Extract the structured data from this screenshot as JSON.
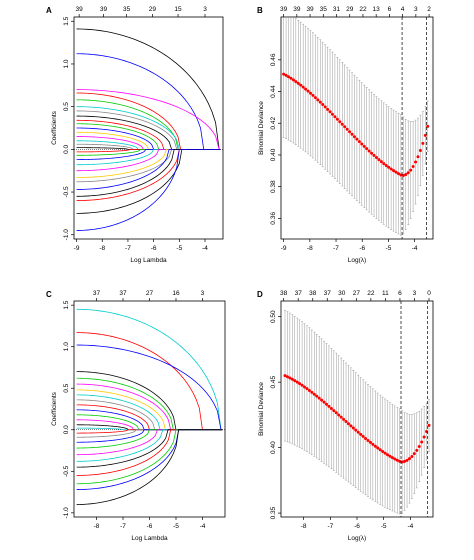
{
  "panels": [
    {
      "letter": "A",
      "type": "coef_path",
      "top_ticks": [
        "39",
        "39",
        "35",
        "29",
        "15",
        "3"
      ],
      "top_tick_x": [
        -8.9,
        -7.95,
        -7.05,
        -6.05,
        -5.05,
        -4.0
      ],
      "x_ticks": [
        -9,
        -8,
        -7,
        -6,
        -5,
        -4
      ],
      "y_ticks": [
        -1.0,
        -0.5,
        0.0,
        0.5,
        1.0,
        1.5
      ],
      "xlim": [
        -9.1,
        -3.3
      ],
      "ylim": [
        -1.05,
        1.55
      ],
      "xlabel": "Log Lambda",
      "ylabel": "Coefficients"
    },
    {
      "letter": "B",
      "type": "cv_curve",
      "top_ticks": [
        "39",
        "39",
        "39",
        "35",
        "31",
        "29",
        "22",
        "13",
        "6",
        "4",
        "3",
        "2"
      ],
      "x_ticks": [
        -9,
        -8,
        -7,
        -6,
        -5,
        -4
      ],
      "y_ticks": [
        0.36,
        0.38,
        0.4,
        0.42,
        0.44,
        0.46
      ],
      "xlim": [
        -9.1,
        -3.3
      ],
      "ylim": [
        0.347,
        0.487
      ],
      "xlabel": "Log(λ)",
      "ylabel": "Binomial Deviance"
    },
    {
      "letter": "C",
      "type": "coef_path",
      "top_ticks": [
        "37",
        "37",
        "27",
        "16",
        "3"
      ],
      "top_tick_x": [
        -8.0,
        -7.0,
        -6.0,
        -5.0,
        -4.0
      ],
      "x_ticks": [
        -8,
        -7,
        -6,
        -5,
        -4
      ],
      "y_ticks": [
        -1.0,
        -0.5,
        0.0,
        0.5,
        1.0,
        1.5
      ],
      "xlim": [
        -8.85,
        -3.15
      ],
      "ylim": [
        -1.05,
        1.55
      ],
      "xlabel": "Log Lambda",
      "ylabel": "Coefficients"
    },
    {
      "letter": "D",
      "type": "cv_curve",
      "top_ticks": [
        "38",
        "37",
        "38",
        "37",
        "30",
        "27",
        "22",
        "11",
        "6",
        "3",
        "0"
      ],
      "x_ticks": [
        -8,
        -7,
        -6,
        -5,
        -4
      ],
      "y_ticks": [
        0.35,
        0.4,
        0.45,
        0.5
      ],
      "xlim": [
        -8.85,
        -3.15
      ],
      "ylim": [
        0.347,
        0.512
      ],
      "xlabel": "Log(λ)",
      "ylabel": "Binomial Deviance"
    }
  ],
  "chart_data": [
    {
      "type": "line",
      "panel": "A",
      "xlabel": "Log Lambda",
      "ylabel": "Coefficients",
      "xlim": [
        -9.1,
        -3.3
      ],
      "ylim": [
        -1.05,
        1.55
      ],
      "end_x": -3.4,
      "note_paths": "coefficient paths shrinking to zero as lambda increases",
      "paths": [
        {
          "start": 1.41,
          "zero_at": -3.45,
          "color": "#000000"
        },
        {
          "start": 1.12,
          "zero_at": -4.05,
          "color": "#0000ff"
        },
        {
          "start": 0.7,
          "zero_at": -3.45,
          "color": "#ff00ff"
        },
        {
          "start": 0.66,
          "zero_at": -4.95,
          "color": "#ff0000"
        },
        {
          "start": 0.58,
          "zero_at": -5.05,
          "color": "#00cc00"
        },
        {
          "start": 0.5,
          "zero_at": -5.0,
          "color": "#00cccc"
        },
        {
          "start": 0.45,
          "zero_at": -5.1,
          "color": "#888888"
        },
        {
          "start": 0.39,
          "zero_at": -5.3,
          "color": "#000000"
        },
        {
          "start": 0.34,
          "zero_at": -5.6,
          "color": "#ff0000"
        },
        {
          "start": 0.3,
          "zero_at": -5.8,
          "color": "#00cc00"
        },
        {
          "start": 0.25,
          "zero_at": -6.0,
          "color": "#0000ff"
        },
        {
          "start": 0.2,
          "zero_at": -6.2,
          "color": "#ffcc00"
        },
        {
          "start": 0.15,
          "zero_at": -6.4,
          "color": "#ff00ff"
        },
        {
          "start": 0.1,
          "zero_at": -6.6,
          "color": "#00cccc"
        },
        {
          "start": 0.06,
          "zero_at": -6.8,
          "color": "#888888"
        },
        {
          "start": 0.02,
          "zero_at": -7.0,
          "color": "#000000"
        },
        {
          "start": -0.03,
          "zero_at": -6.9,
          "color": "#ff0000"
        },
        {
          "start": -0.07,
          "zero_at": -6.5,
          "color": "#00cc00"
        },
        {
          "start": -0.12,
          "zero_at": -6.3,
          "color": "#0000ff"
        },
        {
          "start": -0.18,
          "zero_at": -6.0,
          "color": "#00cccc"
        },
        {
          "start": -0.25,
          "zero_at": -5.8,
          "color": "#ff00ff"
        },
        {
          "start": -0.33,
          "zero_at": -5.5,
          "color": "#ffcc00"
        },
        {
          "start": -0.38,
          "zero_at": -5.3,
          "color": "#888888"
        },
        {
          "start": -0.47,
          "zero_at": -5.4,
          "color": "#0000ff"
        },
        {
          "start": -0.55,
          "zero_at": -5.2,
          "color": "#000000"
        },
        {
          "start": -0.6,
          "zero_at": -5.0,
          "color": "#ff0000"
        },
        {
          "start": -0.75,
          "zero_at": -4.9,
          "color": "#000000"
        },
        {
          "start": -0.95,
          "zero_at": -5.0,
          "color": "#0000ff"
        }
      ]
    },
    {
      "type": "scatter",
      "panel": "B",
      "xlabel": "Log(λ)",
      "ylabel": "Binomial Deviance",
      "xlim": [
        -9.1,
        -3.3
      ],
      "ylim": [
        0.347,
        0.487
      ],
      "x_start": -9.0,
      "x_end": -3.5,
      "n_points": 60,
      "mean_curve": {
        "start": 0.451,
        "min": 0.387,
        "min_at": -4.48,
        "end": 0.418
      },
      "error_halfwidth": {
        "start": 0.04,
        "at_min": 0.038,
        "end": 0.016
      },
      "vline_x": [
        -4.48,
        -3.55
      ],
      "point_color": "#ff0000",
      "errorbar_color": "#999999"
    },
    {
      "type": "line",
      "panel": "C",
      "xlabel": "Log Lambda",
      "ylabel": "Coefficients",
      "xlim": [
        -8.85,
        -3.15
      ],
      "ylim": [
        -1.05,
        1.55
      ],
      "end_x": -3.25,
      "paths": [
        {
          "start": 1.45,
          "zero_at": -3.3,
          "color": "#00cccc"
        },
        {
          "start": 1.17,
          "zero_at": -4.0,
          "color": "#ff0000"
        },
        {
          "start": 1.02,
          "zero_at": -3.3,
          "color": "#0000ff"
        },
        {
          "start": 0.7,
          "zero_at": -5.0,
          "color": "#000000"
        },
        {
          "start": 0.62,
          "zero_at": -5.1,
          "color": "#00cc00"
        },
        {
          "start": 0.55,
          "zero_at": -5.2,
          "color": "#ff00ff"
        },
        {
          "start": 0.48,
          "zero_at": -5.4,
          "color": "#ffcc00"
        },
        {
          "start": 0.42,
          "zero_at": -5.6,
          "color": "#00cccc"
        },
        {
          "start": 0.36,
          "zero_at": -5.8,
          "color": "#888888"
        },
        {
          "start": 0.3,
          "zero_at": -6.0,
          "color": "#ff0000"
        },
        {
          "start": 0.24,
          "zero_at": -6.2,
          "color": "#0000ff"
        },
        {
          "start": 0.18,
          "zero_at": -6.4,
          "color": "#00cc00"
        },
        {
          "start": 0.12,
          "zero_at": -6.6,
          "color": "#ff00ff"
        },
        {
          "start": 0.06,
          "zero_at": -6.8,
          "color": "#000000"
        },
        {
          "start": 0.02,
          "zero_at": -7.0,
          "color": "#00cccc"
        },
        {
          "start": -0.04,
          "zero_at": -6.8,
          "color": "#ff0000"
        },
        {
          "start": -0.09,
          "zero_at": -6.5,
          "color": "#888888"
        },
        {
          "start": -0.15,
          "zero_at": -6.2,
          "color": "#0000ff"
        },
        {
          "start": -0.22,
          "zero_at": -6.0,
          "color": "#00cc00"
        },
        {
          "start": -0.3,
          "zero_at": -5.7,
          "color": "#ff00ff"
        },
        {
          "start": -0.38,
          "zero_at": -5.5,
          "color": "#00cccc"
        },
        {
          "start": -0.45,
          "zero_at": -5.3,
          "color": "#000000"
        },
        {
          "start": -0.55,
          "zero_at": -5.2,
          "color": "#ff0000"
        },
        {
          "start": -0.65,
          "zero_at": -5.0,
          "color": "#00cc00"
        },
        {
          "start": -0.72,
          "zero_at": -4.9,
          "color": "#0000ff"
        },
        {
          "start": -0.9,
          "zero_at": -4.9,
          "color": "#000000"
        }
      ]
    },
    {
      "type": "scatter",
      "panel": "D",
      "xlabel": "Log(λ)",
      "ylabel": "Binomial Deviance",
      "xlim": [
        -8.85,
        -3.15
      ],
      "ylim": [
        0.347,
        0.512
      ],
      "x_start": -8.7,
      "x_end": -3.3,
      "n_points": 60,
      "mean_curve": {
        "start": 0.455,
        "min": 0.389,
        "min_at": -4.35,
        "end": 0.417
      },
      "error_halfwidth": {
        "start": 0.05,
        "at_min": 0.04,
        "end": 0.02
      },
      "vline_x": [
        -4.35,
        -3.35
      ],
      "point_color": "#ff0000",
      "errorbar_color": "#999999"
    }
  ]
}
